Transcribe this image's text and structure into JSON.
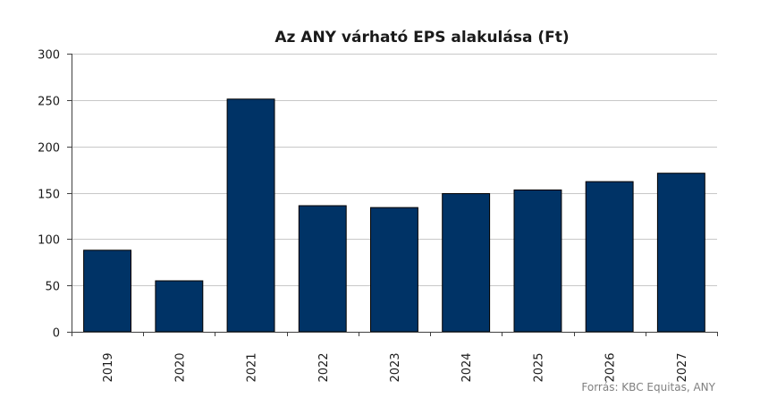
{
  "chart_data": {
    "type": "bar",
    "title": "Az ANY várható EPS alakulása (Ft)",
    "categories": [
      "2019",
      "2020",
      "2021",
      "2022",
      "2023",
      "2024",
      "2025",
      "2026",
      "2027"
    ],
    "values": [
      88,
      55,
      251,
      136,
      134,
      149,
      153,
      162,
      171
    ],
    "xlabel": "",
    "ylabel": "",
    "ylim": [
      0,
      300
    ],
    "yticks": [
      0,
      50,
      100,
      150,
      200,
      250,
      300
    ],
    "grid": true,
    "legend": "none",
    "bar_color": "#003366",
    "source": "Forrás: KBC Equitas, ANY"
  }
}
